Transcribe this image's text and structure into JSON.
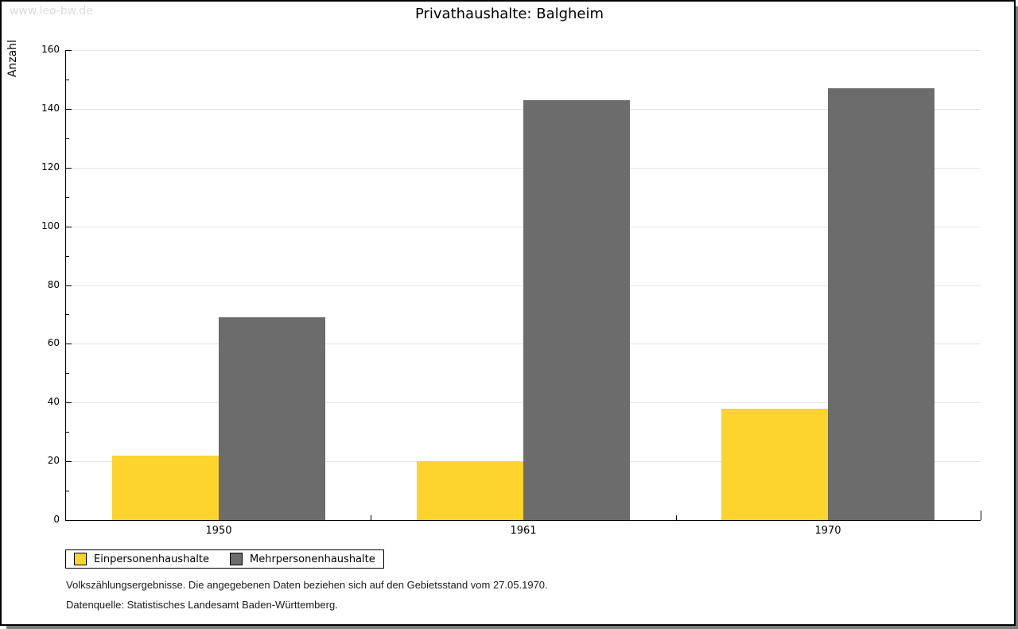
{
  "watermark": "www.leo-bw.de",
  "title": "Privathaushalte: Balgheim",
  "chart_data": {
    "type": "bar",
    "title": "Privathaushalte: Balgheim",
    "categories": [
      "1950",
      "1961",
      "1970"
    ],
    "series": [
      {
        "name": "Einpersonenhaushalte",
        "color": "#FCD42D",
        "values": [
          22,
          20,
          38
        ]
      },
      {
        "name": "Mehrpersonenhaushalte",
        "color": "#6C6C6C",
        "values": [
          69,
          143,
          147
        ]
      }
    ],
    "xlabel": "",
    "ylabel": "Anzahl",
    "ylim": [
      0,
      160
    ],
    "yticks": [
      0,
      20,
      40,
      60,
      80,
      100,
      120,
      140,
      160
    ],
    "minor_tick_step": 10,
    "grid": true,
    "gridline_color": "#e4e4e4",
    "legend_position": "bottom-left"
  },
  "footer": {
    "line1": "Volkszählungsergebnisse. Die angegebenen Daten beziehen sich auf den Gebietsstand vom 27.05.1970.",
    "line2": "Datenquelle: Statistisches Landesamt Baden-Württemberg."
  }
}
